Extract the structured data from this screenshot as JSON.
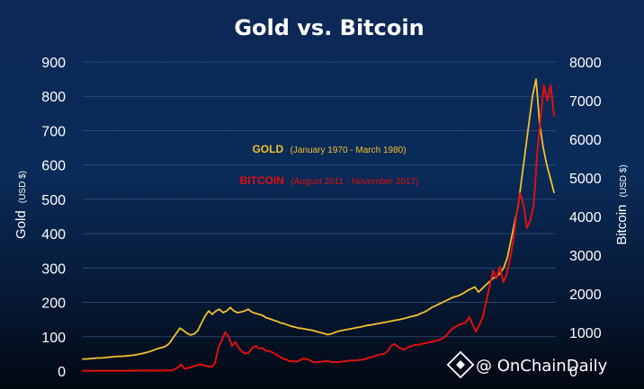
{
  "chart_data": {
    "type": "line",
    "title": "Gold vs. Bitcoin",
    "ylabel_left": "Gold",
    "ylabel_left_unit": "(USD $)",
    "ylabel_right": "Bitcoin",
    "ylabel_right_unit": "(USD $)",
    "ylim_left": [
      0,
      900
    ],
    "ylim_right": [
      0,
      8000
    ],
    "yticks_left": [
      0,
      100,
      200,
      300,
      400,
      500,
      600,
      700,
      800,
      900
    ],
    "yticks_right": [
      0,
      1000,
      2000,
      3000,
      4000,
      5000,
      6000,
      7000,
      8000
    ],
    "grid": true,
    "series": [
      {
        "name": "GOLD",
        "period": "(January 1970 - March 1980)",
        "color": "#f2c12e",
        "axis": "left",
        "x_start": "1970-01",
        "x_end": "1980-03",
        "values": [
          35,
          35,
          36,
          37,
          38,
          38,
          39,
          40,
          41,
          42,
          43,
          43,
          44,
          45,
          46,
          48,
          50,
          52,
          55,
          58,
          62,
          66,
          68,
          72,
          80,
          95,
          110,
          125,
          118,
          110,
          105,
          108,
          118,
          140,
          160,
          175,
          165,
          175,
          180,
          170,
          175,
          185,
          175,
          170,
          172,
          175,
          180,
          172,
          168,
          165,
          162,
          155,
          152,
          148,
          145,
          140,
          138,
          134,
          130,
          128,
          125,
          124,
          122,
          120,
          118,
          115,
          112,
          110,
          106,
          108,
          112,
          116,
          118,
          120,
          122,
          124,
          126,
          128,
          130,
          133,
          134,
          136,
          138,
          140,
          142,
          144,
          146,
          148,
          150,
          152,
          155,
          158,
          160,
          163,
          168,
          172,
          178,
          185,
          190,
          195,
          200,
          205,
          210,
          215,
          218,
          222,
          228,
          235,
          240,
          245,
          230,
          240,
          250,
          260,
          270,
          275,
          285,
          300,
          330,
          380,
          430,
          480,
          560,
          640,
          720,
          800,
          850,
          720,
          650,
          600,
          560,
          520
        ]
      },
      {
        "name": "BITCOIN",
        "period": "(August 2011 - November 2017)",
        "color": "#e01010",
        "axis": "right",
        "x_start": "2011-08",
        "x_end": "2017-11",
        "values": [
          8,
          8,
          7,
          6,
          6,
          5,
          5,
          5,
          5,
          5,
          6,
          6,
          7,
          7,
          8,
          9,
          10,
          12,
          13,
          13,
          12,
          12,
          12,
          12,
          13,
          14,
          15,
          40,
          90,
          170,
          60,
          80,
          100,
          130,
          160,
          170,
          140,
          120,
          110,
          200,
          600,
          800,
          1000,
          900,
          650,
          750,
          600,
          500,
          450,
          480,
          600,
          650,
          580,
          600,
          520,
          520,
          480,
          430,
          380,
          320,
          300,
          250,
          260,
          240,
          280,
          320,
          310,
          280,
          230,
          230,
          240,
          250,
          260,
          240,
          230,
          230,
          240,
          250,
          260,
          270,
          275,
          280,
          290,
          300,
          340,
          360,
          380,
          420,
          430,
          450,
          520,
          660,
          700,
          620,
          580,
          560,
          620,
          650,
          680,
          680,
          700,
          720,
          740,
          760,
          780,
          800,
          840,
          900,
          1000,
          1100,
          1150,
          1200,
          1220,
          1260,
          1400,
          1200,
          1020,
          1200,
          1400,
          1800,
          2200,
          2600,
          2400,
          2700,
          2300,
          2500,
          2900,
          3400,
          4100,
          4600,
          4300,
          3700,
          3900,
          4300,
          5600,
          6500,
          7400,
          7000,
          7400,
          6600
        ]
      }
    ]
  },
  "watermark": {
    "icon": "binance-diamond-icon",
    "text": "@ OnChainDaily"
  }
}
